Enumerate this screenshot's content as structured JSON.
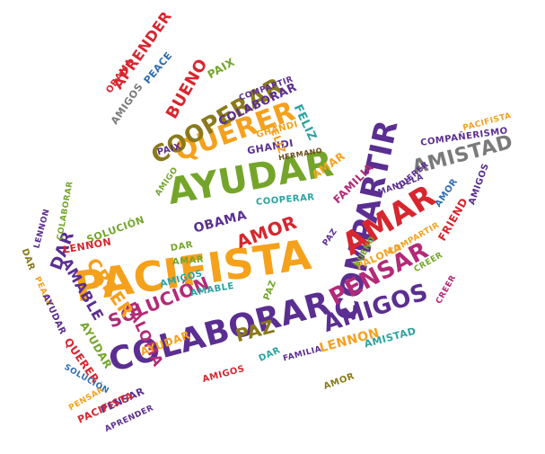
{
  "palette": {
    "orange": "#f5a11c",
    "purple": "#5b2e91",
    "red": "#d8262e",
    "green": "#74a52a",
    "teal": "#2aa3a1",
    "blue": "#2f6db0",
    "olive": "#8a7a1a",
    "magenta": "#b32a78",
    "gray": "#7a7a7a",
    "brown": "#6b4a1c",
    "yellow": "#e8b21a"
  },
  "words": [
    {
      "text": "PACIFISTA",
      "color": "orange"
    },
    {
      "text": "COMPARTIR",
      "color": "purple"
    },
    {
      "text": "AYUDAR",
      "color": "green"
    },
    {
      "text": "COLABORAR",
      "color": "purple"
    },
    {
      "text": "QUERER",
      "color": "orange"
    },
    {
      "text": "COOPERAR",
      "color": "olive"
    },
    {
      "text": "AMAR",
      "color": "red"
    },
    {
      "text": "PENSAR",
      "color": "magenta"
    },
    {
      "text": "AMIGOS",
      "color": "purple"
    },
    {
      "text": "AMISTAD",
      "color": "gray"
    },
    {
      "text": "SOLUCIÓN",
      "color": "magenta"
    },
    {
      "text": "PALOMA",
      "color": "magenta"
    },
    {
      "text": "CREER",
      "color": "orange"
    },
    {
      "text": "AMABLE",
      "color": "purple"
    },
    {
      "text": "DAR",
      "color": "purple"
    },
    {
      "text": "AMOR",
      "color": "red"
    },
    {
      "text": "PAZ",
      "color": "olive"
    },
    {
      "text": "APRENDER",
      "color": "red"
    },
    {
      "text": "BUENO",
      "color": "red"
    },
    {
      "text": "PEACE",
      "color": "blue"
    },
    {
      "text": "PAIX",
      "color": "green"
    },
    {
      "text": "FELIZ",
      "color": "teal"
    },
    {
      "text": "GHANDI",
      "color": "purple"
    },
    {
      "text": "FRIEND",
      "color": "red"
    },
    {
      "text": "FAMILIA",
      "color": "magenta"
    },
    {
      "text": "LENNON",
      "color": "orange"
    },
    {
      "text": "OBAMA",
      "color": "purple"
    },
    {
      "text": "AMIGOS",
      "color": "gray"
    },
    {
      "text": "COLABORAR",
      "color": "purple"
    },
    {
      "text": "COMPARTIR",
      "color": "purple"
    },
    {
      "text": "COMPAÑERISMO",
      "color": "purple"
    },
    {
      "text": "PACIFISTA",
      "color": "orange"
    },
    {
      "text": "HERMANO",
      "color": "brown"
    },
    {
      "text": "AMIGO",
      "color": "green"
    },
    {
      "text": "MANDELA",
      "color": "purple"
    },
    {
      "text": "COOPERAR",
      "color": "teal"
    },
    {
      "text": "AYUDAR",
      "color": "green"
    },
    {
      "text": "QUERER",
      "color": "red"
    },
    {
      "text": "PALOMA",
      "color": "orange"
    },
    {
      "text": "PAZ",
      "color": "green"
    },
    {
      "text": "CREER",
      "color": "green"
    },
    {
      "text": "AMISTAD",
      "color": "teal"
    },
    {
      "text": "AMABLE",
      "color": "teal"
    },
    {
      "text": "AMIGOS",
      "color": "teal"
    },
    {
      "text": "SOLUCIÓN",
      "color": "green"
    },
    {
      "text": "LENNON",
      "color": "red"
    },
    {
      "text": "AMAR",
      "color": "green"
    },
    {
      "text": "DAR",
      "color": "teal"
    },
    {
      "text": "GHANDI",
      "color": "orange"
    },
    {
      "text": "AMOR",
      "color": "olive"
    },
    {
      "text": "PENSAR",
      "color": "purple"
    },
    {
      "text": "BUENO",
      "color": "green"
    },
    {
      "text": "PACIFISTA",
      "color": "red"
    },
    {
      "text": "APRENDER",
      "color": "purple"
    },
    {
      "text": "AYUDAR",
      "color": "orange"
    },
    {
      "text": "QUERER",
      "color": "purple"
    },
    {
      "text": "COLABORAR",
      "color": "green"
    },
    {
      "text": "DAR",
      "color": "olive"
    },
    {
      "text": "PAIX",
      "color": "purple"
    },
    {
      "text": "FAMILIA",
      "color": "purple"
    },
    {
      "text": "AMIGOS",
      "color": "red"
    },
    {
      "text": "LENNON",
      "color": "purple"
    },
    {
      "text": "OBAMA",
      "color": "red"
    },
    {
      "text": "PEACE",
      "color": "orange"
    },
    {
      "text": "PENSAR",
      "color": "orange"
    },
    {
      "text": "CREER",
      "color": "magenta"
    },
    {
      "text": "AYUDAR",
      "color": "purple"
    },
    {
      "text": "FELIZ",
      "color": "orange"
    },
    {
      "text": "AMIGOS",
      "color": "purple"
    },
    {
      "text": "PAZ",
      "color": "purple"
    },
    {
      "text": "SOLUCIÓN",
      "color": "blue"
    },
    {
      "text": "AMOR",
      "color": "blue"
    },
    {
      "text": "AMAR",
      "color": "orange"
    },
    {
      "text": "DAR",
      "color": "green"
    },
    {
      "text": "COMPARTIR",
      "color": "orange"
    }
  ]
}
